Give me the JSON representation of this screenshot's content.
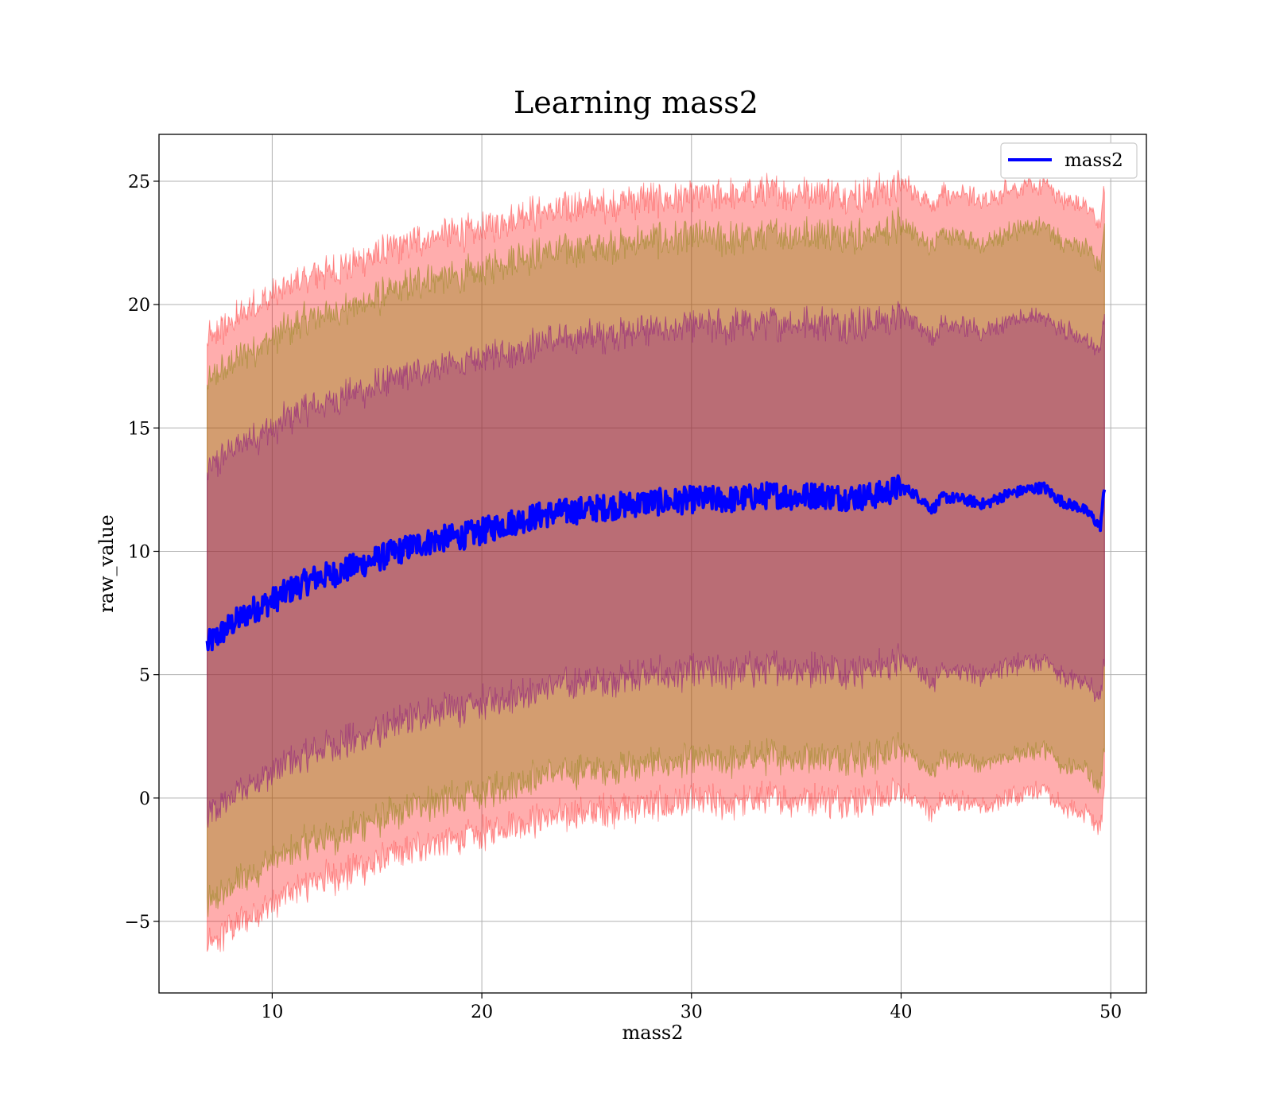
{
  "chart_data": {
    "type": "line",
    "title": "Learning mass2",
    "xlabel": "mass2",
    "ylabel": "raw_value",
    "xlim": [
      4.6,
      51.7
    ],
    "ylim": [
      -7.9,
      26.9
    ],
    "x_ticks": [
      10,
      20,
      30,
      40,
      50
    ],
    "x_tick_labels": [
      "10",
      "20",
      "30",
      "40",
      "50"
    ],
    "y_ticks": [
      -5,
      0,
      5,
      10,
      15,
      20,
      25
    ],
    "y_tick_labels": [
      "−5",
      "0",
      "5",
      "10",
      "15",
      "20",
      "25"
    ],
    "grid": true,
    "legend": {
      "position": "top-right",
      "entries": [
        "mass2"
      ]
    },
    "colors": {
      "line": "#0000ff",
      "band": "#ff0000",
      "inner_band": "#800080",
      "middle_band": "#808000"
    },
    "series": [
      {
        "name": "mass2",
        "x": [
          6.9,
          8,
          9,
          10,
          11,
          12,
          13,
          14,
          15,
          16,
          17,
          18,
          19,
          20,
          21,
          22,
          23,
          24,
          25,
          26,
          27,
          28,
          29,
          30,
          31,
          32,
          33,
          34,
          35,
          36,
          37,
          38,
          39,
          40,
          40.5,
          41,
          41.5,
          42,
          43,
          44,
          45,
          46,
          46.8,
          47.5,
          48,
          48.5,
          49,
          49.5,
          49.7
        ],
        "y": [
          6.2,
          7.0,
          7.6,
          8.0,
          8.5,
          8.9,
          9.1,
          9.4,
          9.7,
          10.0,
          10.3,
          10.5,
          10.6,
          10.8,
          11.1,
          11.3,
          11.5,
          11.6,
          11.7,
          11.8,
          11.9,
          12.0,
          12.0,
          12.1,
          12.1,
          12.1,
          12.2,
          12.3,
          12.2,
          12.3,
          12.2,
          12.2,
          12.3,
          12.6,
          12.4,
          12.1,
          11.7,
          12.2,
          12.1,
          11.9,
          12.3,
          12.5,
          12.6,
          12.1,
          11.9,
          11.8,
          11.5,
          11.0,
          12.5
        ],
        "bands": [
          {
            "sigma": 1,
            "lower_offset": -7.0,
            "upper_offset": 7.0
          },
          {
            "sigma": 2,
            "lower_offset": -10.6,
            "upper_offset": 10.6
          },
          {
            "sigma": 3,
            "lower_offset": -12.3,
            "upper_offset": 12.3
          }
        ]
      }
    ]
  }
}
